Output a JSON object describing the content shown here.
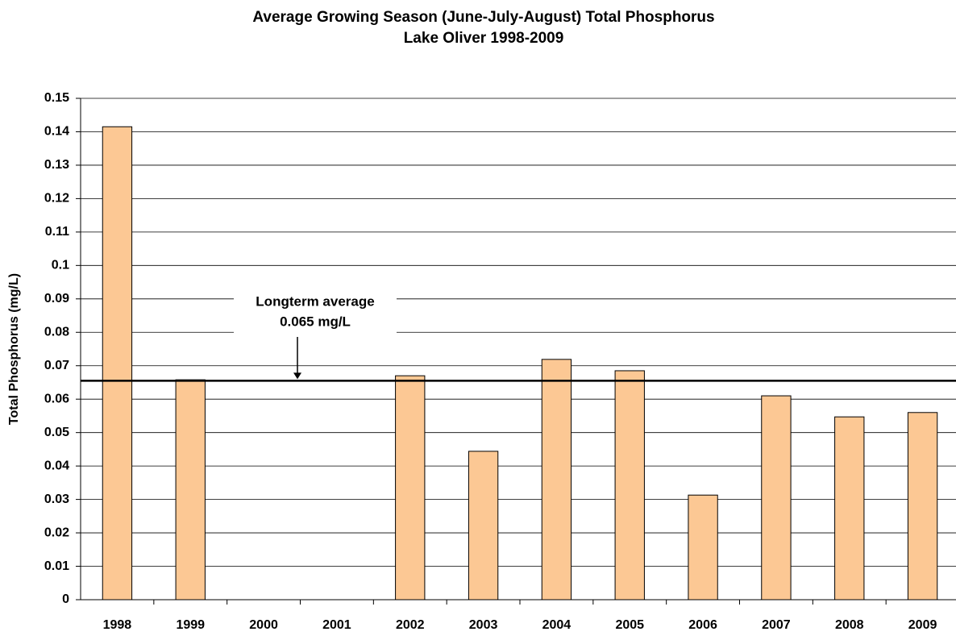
{
  "chart_data": {
    "type": "bar",
    "title": "Average Growing Season (June-July-August) Total Phosphorus",
    "subtitle": "Lake Oliver 1998-2009",
    "y_label": "Total Phosphorus (mg/L)",
    "categories": [
      "1998",
      "1999",
      "2000",
      "2001",
      "2002",
      "2003",
      "2004",
      "2005",
      "2006",
      "2007",
      "2008",
      "2009"
    ],
    "values": [
      0.1415,
      0.0658,
      null,
      null,
      0.067,
      0.0444,
      0.0719,
      0.0685,
      0.0313,
      0.061,
      0.0547,
      0.056
    ],
    "color": "#fcc894",
    "ylim": [
      0,
      0.15
    ],
    "yticks": [
      0,
      0.01,
      0.02,
      0.03,
      0.04,
      0.05,
      0.06,
      0.07,
      0.08,
      0.09,
      0.1,
      0.11,
      0.12,
      0.13,
      0.14,
      0.15
    ],
    "grid": true,
    "reference_line": {
      "value": 0.0655,
      "label": [
        "Longterm average",
        "0.065 mg/L"
      ]
    }
  }
}
